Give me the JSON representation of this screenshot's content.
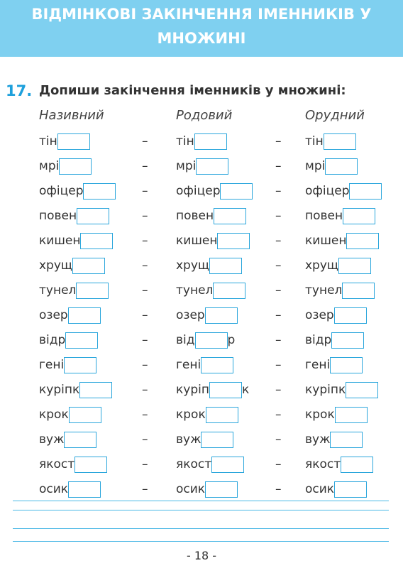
{
  "header": {
    "title_lines": [
      "ВІДМІНКОВІ ЗАКІНЧЕННЯ ІМЕННИКІВ У",
      "МНОЖИНІ"
    ]
  },
  "exercise": {
    "number": "17.",
    "instruction": "Допиши закінчення іменників у множині:",
    "columns": [
      "Називний",
      "Родовий",
      "Орудний"
    ],
    "separator": "–",
    "rows": [
      [
        {
          "stem": "тін"
        },
        {
          "stem": "тін"
        },
        {
          "stem": "тін"
        }
      ],
      [
        {
          "stem": "мрі"
        },
        {
          "stem": "мрі"
        },
        {
          "stem": "мрі"
        }
      ],
      [
        {
          "stem": "офіцер"
        },
        {
          "stem": "офіцер"
        },
        {
          "stem": "офіцер"
        }
      ],
      [
        {
          "stem": "повен"
        },
        {
          "stem": "повен"
        },
        {
          "stem": "повен"
        }
      ],
      [
        {
          "stem": "кишен"
        },
        {
          "stem": "кишен"
        },
        {
          "stem": "кишен"
        }
      ],
      [
        {
          "stem": "хрущ"
        },
        {
          "stem": "хрущ"
        },
        {
          "stem": "хрущ"
        }
      ],
      [
        {
          "stem": "тунел"
        },
        {
          "stem": "тунел"
        },
        {
          "stem": "тунел"
        }
      ],
      [
        {
          "stem": "озер"
        },
        {
          "stem": "озер"
        },
        {
          "stem": "озер"
        }
      ],
      [
        {
          "stem": "відр"
        },
        {
          "stem": "від",
          "suffix": "р"
        },
        {
          "stem": "відр"
        }
      ],
      [
        {
          "stem": "гені"
        },
        {
          "stem": "гені"
        },
        {
          "stem": "гені"
        }
      ],
      [
        {
          "stem": "куріпк"
        },
        {
          "stem": "куріп",
          "suffix": "к"
        },
        {
          "stem": "куріпк"
        }
      ],
      [
        {
          "stem": "крок"
        },
        {
          "stem": "крок"
        },
        {
          "stem": "крок"
        }
      ],
      [
        {
          "stem": "вуж"
        },
        {
          "stem": "вуж"
        },
        {
          "stem": "вуж"
        }
      ],
      [
        {
          "stem": "якост"
        },
        {
          "stem": "якост"
        },
        {
          "stem": "якост"
        }
      ],
      [
        {
          "stem": "осик"
        },
        {
          "stem": "осик"
        },
        {
          "stem": "осик"
        }
      ]
    ]
  },
  "footer": {
    "page_number": "- 18 -"
  }
}
